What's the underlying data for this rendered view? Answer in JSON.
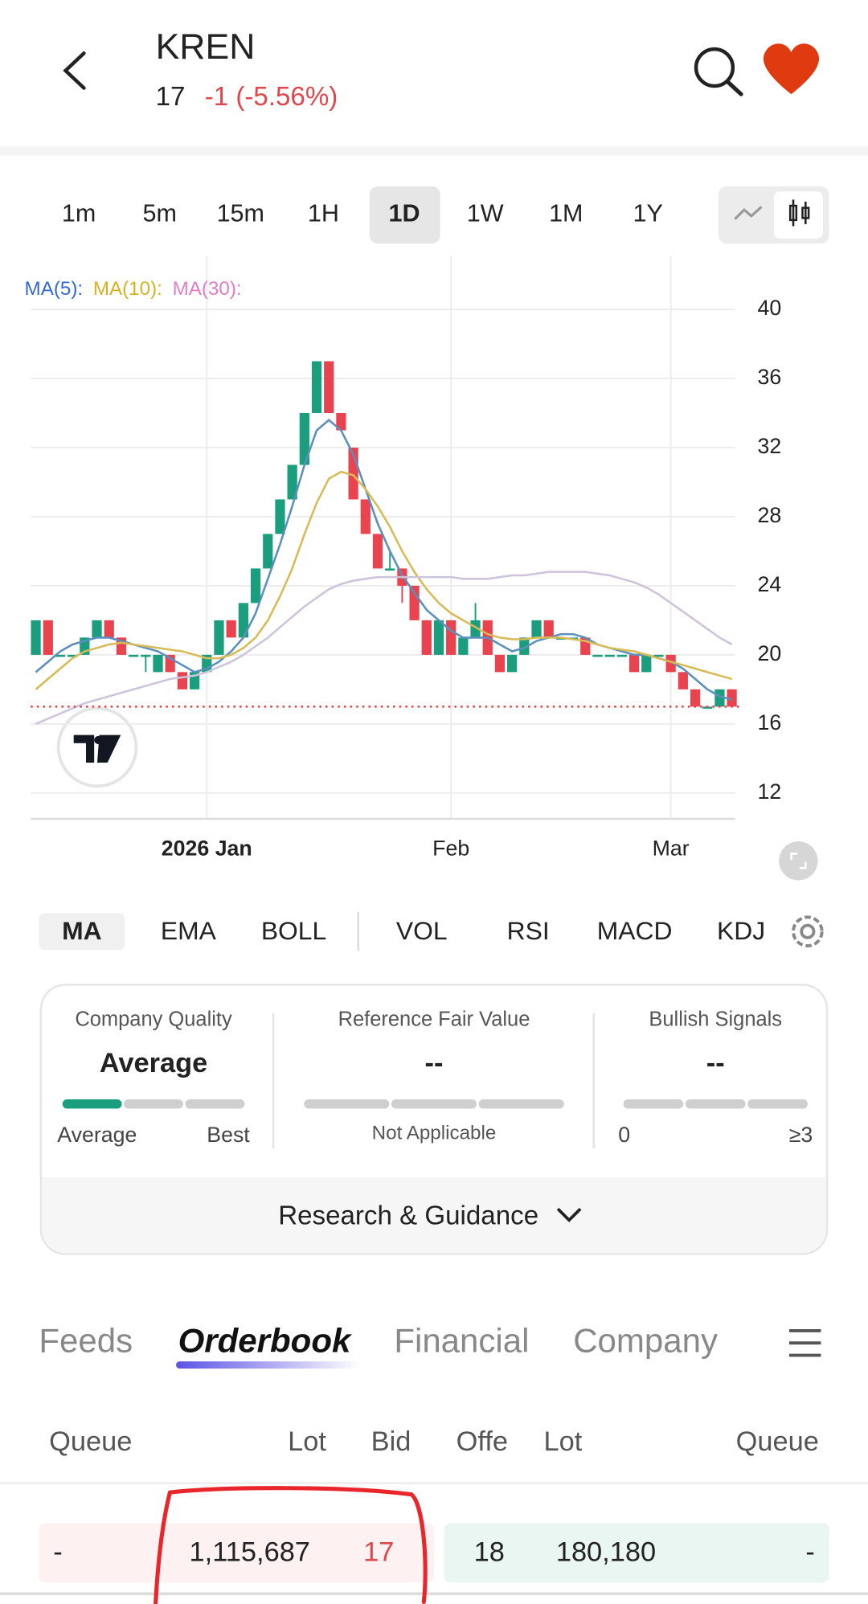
{
  "header": {
    "ticker": "KREN",
    "price": "17",
    "change": "-1 (-5.56%)"
  },
  "timeframes": [
    "1m",
    "5m",
    "15m",
    "1H",
    "1D",
    "1W",
    "1M",
    "1Y"
  ],
  "active_timeframe_index": 4,
  "chart_data": {
    "type": "candlestick",
    "categories": [
      null,
      null,
      null,
      null,
      null,
      null,
      null,
      null,
      null,
      null,
      null,
      null,
      null,
      null,
      "2026 Jan",
      null,
      null,
      null,
      null,
      null,
      null,
      null,
      null,
      null,
      null,
      null,
      null,
      null,
      null,
      null,
      null,
      null,
      null,
      null,
      "Feb",
      null,
      null,
      null,
      null,
      null,
      null,
      null,
      null,
      null,
      null,
      null,
      null,
      null,
      null,
      null,
      null,
      null,
      "Mar",
      null,
      null,
      null,
      null,
      null
    ],
    "open": [
      20,
      22,
      20,
      20,
      20,
      21,
      22,
      21,
      20,
      20,
      19,
      20,
      19,
      18,
      19,
      20,
      22,
      21,
      23,
      25,
      27,
      29,
      31,
      34,
      37,
      34,
      32,
      29,
      27,
      25,
      25,
      24,
      22,
      20,
      22,
      20,
      21,
      22,
      20,
      19,
      20,
      21,
      22,
      21,
      21,
      21,
      20,
      20,
      20,
      20,
      19,
      20,
      20,
      19,
      18,
      17,
      17,
      18
    ],
    "high": [
      22,
      22,
      20,
      20,
      21,
      22,
      22,
      21,
      20,
      20,
      20,
      20,
      19,
      19,
      20,
      22,
      22,
      23,
      25,
      27,
      29,
      31,
      34,
      37,
      37,
      34,
      32,
      29,
      27,
      26,
      25,
      24,
      22,
      22,
      22,
      21,
      23,
      22,
      20,
      20,
      21,
      22,
      22,
      21,
      21,
      21,
      20,
      20,
      20,
      20,
      20,
      20,
      20,
      19,
      18,
      17,
      18,
      18
    ],
    "low": [
      20,
      20,
      20,
      20,
      20,
      21,
      21,
      20,
      20,
      19,
      19,
      19,
      18,
      18,
      19,
      20,
      21,
      21,
      23,
      25,
      27,
      29,
      31,
      34,
      34,
      33,
      29,
      27,
      25,
      25,
      23,
      22,
      20,
      20,
      20,
      20,
      21,
      20,
      19,
      19,
      20,
      21,
      21,
      21,
      21,
      20,
      20,
      20,
      20,
      19,
      19,
      20,
      19,
      18,
      17,
      17,
      17,
      17
    ],
    "close": [
      22,
      20,
      20,
      20,
      21,
      22,
      21,
      20,
      20,
      20,
      20,
      19,
      18,
      19,
      20,
      22,
      21,
      23,
      25,
      27,
      29,
      31,
      34,
      37,
      34,
      33,
      29,
      27,
      25,
      25,
      24,
      22,
      20,
      22,
      20,
      21,
      22,
      20,
      19,
      20,
      21,
      22,
      21,
      21,
      21,
      20,
      20,
      20,
      20,
      19,
      20,
      20,
      19,
      18,
      17,
      17,
      18,
      17
    ],
    "up_color": "#1a9e7e",
    "down_color": "#e8434f",
    "series": [
      {
        "name": "MA(5):",
        "color": "#5a8fbe",
        "label_color": "#3567d6",
        "values": [
          19,
          19.6,
          20.2,
          20.6,
          20.8,
          21,
          21,
          20.8,
          20.6,
          20.4,
          20.2,
          19.8,
          19.4,
          19,
          19.2,
          19.6,
          20.2,
          21,
          22.4,
          24.4,
          26.4,
          28.6,
          31,
          33,
          33.6,
          33,
          31.6,
          29.6,
          27.6,
          26,
          24.6,
          23.6,
          22.6,
          22,
          21.4,
          21,
          21,
          21,
          20.6,
          20.2,
          20.4,
          20.8,
          21,
          21.2,
          21.2,
          21,
          20.6,
          20.4,
          20.2,
          20,
          20,
          19.8,
          19.6,
          19.2,
          18.6,
          18,
          17.6,
          17.4
        ]
      },
      {
        "name": "MA(10):",
        "color": "#d8bb55",
        "label_color": "#d7b21f",
        "values": [
          18,
          18.6,
          19.2,
          19.8,
          20.2,
          20.4,
          20.6,
          20.7,
          20.6,
          20.5,
          20.4,
          20.3,
          20.2,
          20,
          19.8,
          19.8,
          20,
          20.4,
          21,
          22,
          23.4,
          25,
          27,
          28.8,
          30.2,
          30.6,
          30.4,
          29.6,
          28.6,
          27.4,
          26,
          24.8,
          23.8,
          23,
          22.4,
          22,
          21.6,
          21.2,
          21,
          20.9,
          20.9,
          21,
          21,
          21,
          20.9,
          20.8,
          20.6,
          20.4,
          20.3,
          20.2,
          20,
          19.8,
          19.6,
          19.4,
          19.2,
          19,
          18.8,
          18.6
        ]
      },
      {
        "name": "MA(30):",
        "color": "#cdc4dc",
        "label_color": "#e27dc4",
        "values": [
          16,
          16.3,
          16.6,
          16.9,
          17.2,
          17.4,
          17.6,
          17.8,
          18,
          18.2,
          18.4,
          18.6,
          18.7,
          18.8,
          19,
          19.3,
          19.6,
          20,
          20.5,
          21,
          21.6,
          22.2,
          22.8,
          23.3,
          23.8,
          24.1,
          24.3,
          24.4,
          24.5,
          24.5,
          24.5,
          24.5,
          24.5,
          24.5,
          24.5,
          24.4,
          24.4,
          24.4,
          24.5,
          24.6,
          24.6,
          24.7,
          24.8,
          24.8,
          24.8,
          24.8,
          24.7,
          24.6,
          24.4,
          24.2,
          23.9,
          23.5,
          23,
          22.5,
          22,
          21.5,
          21,
          20.6
        ]
      }
    ],
    "last_price": 17,
    "ylim": [
      10.5,
      43.1
    ],
    "yticks": [
      12,
      16,
      20,
      24,
      28,
      32,
      36,
      40
    ],
    "grid": true
  },
  "indicators": [
    "MA",
    "EMA",
    "BOLL",
    "VOL",
    "RSI",
    "MACD",
    "KDJ"
  ],
  "active_indicator_index": 0,
  "scores": [
    {
      "title": "Company Quality",
      "value": "Average",
      "left": "Average",
      "right": "Best"
    },
    {
      "title": "Reference Fair Value",
      "value": "--",
      "note": "Not Applicable"
    },
    {
      "title": "Bullish Signals",
      "value": "--",
      "left": "0",
      "right": "≥3"
    }
  ],
  "research": "Research & Guidance",
  "tabs": [
    "Feeds",
    "Orderbook",
    "Financial",
    "Company"
  ],
  "active_tab_index": 1,
  "orderbook": {
    "headers": [
      "Queue",
      "Lot",
      "Bid",
      "Offe",
      "Lot",
      "Queue"
    ],
    "rows": [
      [
        "-",
        "1,115,687",
        "17",
        "18",
        "180,180",
        "-"
      ]
    ]
  }
}
